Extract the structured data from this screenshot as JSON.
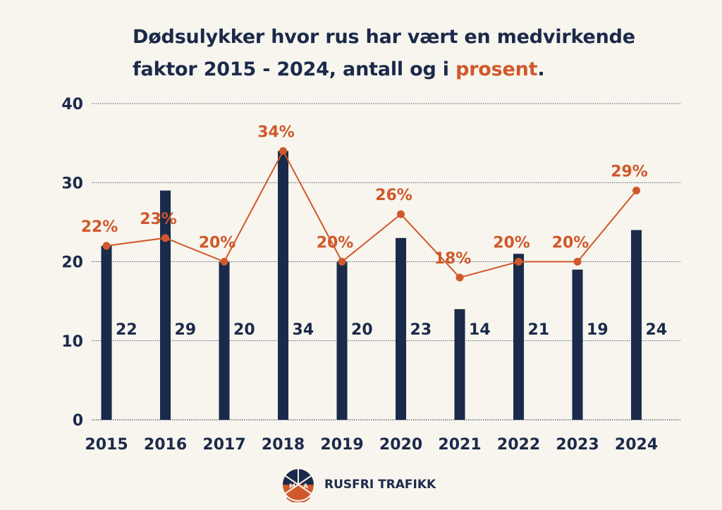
{
  "title": {
    "line1": "Dødsulykker hvor rus har vært en medvirkende",
    "line2_prefix": "faktor 2015 - 2024, antall og i ",
    "line2_highlight": "prosent",
    "line2_suffix": "."
  },
  "chart_data": {
    "type": "bar",
    "title": "Dødsulykker hvor rus har vært en medvirkende faktor 2015 - 2024, antall og i prosent.",
    "categories": [
      "2015",
      "2016",
      "2017",
      "2018",
      "2019",
      "2020",
      "2021",
      "2022",
      "2023",
      "2024"
    ],
    "series": [
      {
        "name": "antall",
        "type": "bar",
        "values": [
          22,
          29,
          20,
          34,
          20,
          23,
          14,
          21,
          19,
          24
        ],
        "labels": [
          "22",
          "29",
          "20",
          "34",
          "20",
          "23",
          "14",
          "21",
          "19",
          "24"
        ],
        "color": "#1b2a4a"
      },
      {
        "name": "prosent",
        "type": "line",
        "values": [
          22,
          23,
          20,
          34,
          20,
          26,
          18,
          20,
          20,
          29
        ],
        "labels": [
          "22%",
          "23%",
          "20%",
          "34%",
          "20%",
          "26%",
          "18%",
          "20%",
          "20%",
          "29%"
        ],
        "color": "#d0582a"
      }
    ],
    "ylim": [
      0,
      40
    ],
    "yticks": [
      "0",
      "10",
      "20",
      "30",
      "40"
    ],
    "xlabel": "",
    "ylabel": "",
    "grid": true
  },
  "footer": {
    "brand": "RUSFRI TRAFIKK",
    "logo_letters": [
      "M",
      "A"
    ]
  },
  "colors": {
    "navy": "#1b2a4a",
    "orange": "#d0582a",
    "background": "#f7f5ee"
  }
}
